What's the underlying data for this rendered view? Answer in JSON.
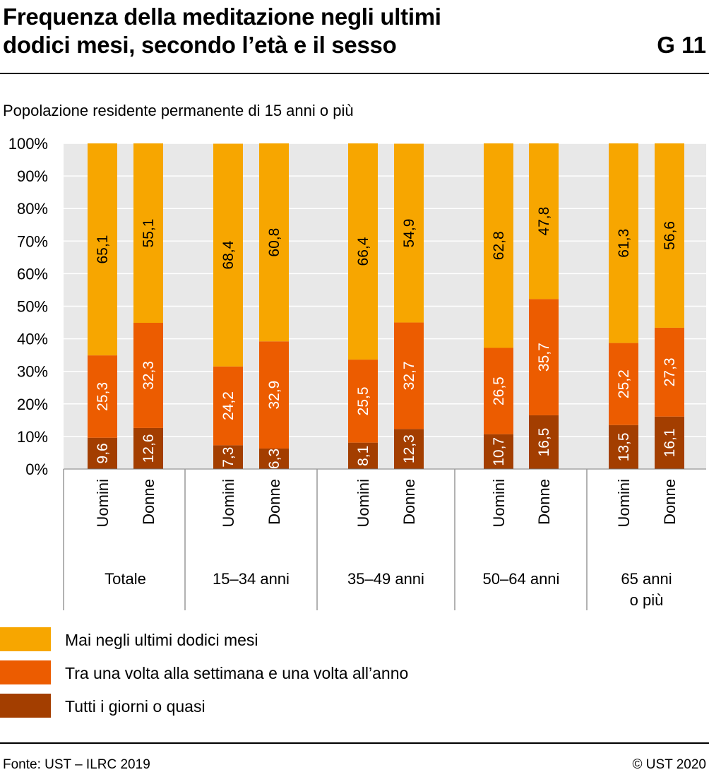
{
  "header": {
    "title_line1": "Frequenza della meditazione negli ultimi",
    "title_line2": "dodici mesi, secondo l’età e il sesso",
    "code": "G 11",
    "subtitle": "Popolazione residente permanente di 15 anni o più"
  },
  "footer": {
    "source": "Fonte: UST – ILRC 2019",
    "copyright": "© UST 2020"
  },
  "chart_data": {
    "type": "bar",
    "stacked": true,
    "y_unit": "%",
    "ylim": [
      0,
      100
    ],
    "yticks": [
      "0%",
      "10%",
      "20%",
      "30%",
      "40%",
      "50%",
      "60%",
      "70%",
      "80%",
      "90%",
      "100%"
    ],
    "grid": true,
    "groups": [
      "Totale",
      "15–34 anni",
      "35–49 anni",
      "50–64 anni",
      "65 anni o più"
    ],
    "group_label_lines": [
      [
        "Totale"
      ],
      [
        "15–34 anni"
      ],
      [
        "35–49 anni"
      ],
      [
        "50–64 anni"
      ],
      [
        "65 anni",
        "o più"
      ]
    ],
    "bar_labels": [
      "Uomini",
      "Donne"
    ],
    "series": [
      {
        "name": "Tutti i giorni o quasi",
        "color": "#a33e00",
        "values": [
          [
            9.6,
            12.6
          ],
          [
            7.3,
            6.3
          ],
          [
            8.1,
            12.3
          ],
          [
            10.7,
            16.5
          ],
          [
            13.5,
            16.1
          ]
        ],
        "labels": [
          [
            "9,6",
            "12,6"
          ],
          [
            "7,3",
            "6,3"
          ],
          [
            "8,1",
            "12,3"
          ],
          [
            "10,7",
            "16,5"
          ],
          [
            "13,5",
            "16,1"
          ]
        ]
      },
      {
        "name": "Tra una volta alla settimana e una volta all’anno",
        "color": "#ec5c00",
        "values": [
          [
            25.3,
            32.3
          ],
          [
            24.2,
            32.9
          ],
          [
            25.5,
            32.7
          ],
          [
            26.5,
            35.7
          ],
          [
            25.2,
            27.3
          ]
        ],
        "labels": [
          [
            "25,3",
            "32,3"
          ],
          [
            "24,2",
            "32,9"
          ],
          [
            "25,5",
            "32,7"
          ],
          [
            "26,5",
            "35,7"
          ],
          [
            "25,2",
            "27,3"
          ]
        ]
      },
      {
        "name": "Mai negli ultimi dodici mesi",
        "color": "#f7a600",
        "values": [
          [
            65.1,
            55.1
          ],
          [
            68.4,
            60.8
          ],
          [
            66.4,
            54.9
          ],
          [
            62.8,
            47.8
          ],
          [
            61.3,
            56.6
          ]
        ],
        "labels": [
          [
            "65,1",
            "55,1"
          ],
          [
            "68,4",
            "60,8"
          ],
          [
            "66,4",
            "54,9"
          ],
          [
            "62,8",
            "47,8"
          ],
          [
            "61,3",
            "56,6"
          ]
        ]
      }
    ],
    "legend_placement": "bottom"
  }
}
